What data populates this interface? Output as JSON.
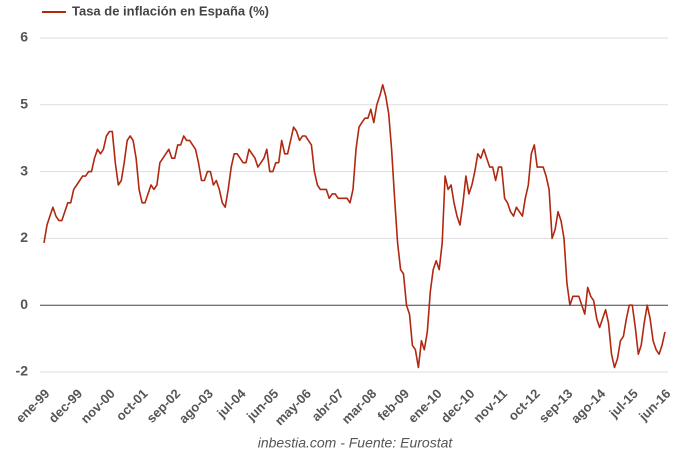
{
  "chart_data": {
    "type": "line",
    "title": null,
    "source": "inbestia.com - Fuente: Eurostat",
    "legend": "top-left",
    "grid": true,
    "categories": [
      "ene-99",
      null,
      null,
      null,
      null,
      null,
      null,
      null,
      null,
      null,
      null,
      "dec-99",
      null,
      null,
      null,
      null,
      null,
      null,
      null,
      null,
      null,
      null,
      "nov-00",
      null,
      null,
      null,
      null,
      null,
      null,
      null,
      null,
      null,
      null,
      "oct-01",
      null,
      null,
      null,
      null,
      null,
      null,
      null,
      null,
      null,
      null,
      "sep-02",
      null,
      null,
      null,
      null,
      null,
      null,
      null,
      null,
      null,
      null,
      "ago-03",
      null,
      null,
      null,
      null,
      null,
      null,
      null,
      null,
      null,
      null,
      "jul-04",
      null,
      null,
      null,
      null,
      null,
      null,
      null,
      null,
      null,
      null,
      "jun-05",
      null,
      null,
      null,
      null,
      null,
      null,
      null,
      null,
      null,
      null,
      "may-06",
      null,
      null,
      null,
      null,
      null,
      null,
      null,
      null,
      null,
      null,
      "abr-07",
      null,
      null,
      null,
      null,
      null,
      null,
      null,
      null,
      null,
      null,
      "mar-08",
      null,
      null,
      null,
      null,
      null,
      null,
      null,
      null,
      null,
      null,
      "feb-09",
      null,
      null,
      null,
      null,
      null,
      null,
      null,
      null,
      null,
      null,
      "ene-10",
      null,
      null,
      null,
      null,
      null,
      null,
      null,
      null,
      null,
      null,
      "dec-10",
      null,
      null,
      null,
      null,
      null,
      null,
      null,
      null,
      null,
      null,
      "nov-11",
      null,
      null,
      null,
      null,
      null,
      null,
      null,
      null,
      null,
      null,
      "oct-12",
      null,
      null,
      null,
      null,
      null,
      null,
      null,
      null,
      null,
      null,
      "sep-13",
      null,
      null,
      null,
      null,
      null,
      null,
      null,
      null,
      null,
      null,
      "ago-14",
      null,
      null,
      null,
      null,
      null,
      null,
      null,
      null,
      null,
      null,
      "jul-15",
      null,
      null,
      null,
      null,
      null,
      null,
      null,
      null,
      null,
      null,
      "jun-16"
    ],
    "series": [
      {
        "name": "Tasa de inflación en España (%)",
        "color": "#b0280f",
        "values": [
          1.4,
          1.8,
          2.0,
          2.2,
          2.0,
          1.9,
          1.9,
          2.1,
          2.3,
          2.3,
          2.6,
          2.7,
          2.8,
          2.9,
          2.9,
          3.0,
          3.0,
          3.3,
          3.5,
          3.4,
          3.5,
          3.8,
          3.9,
          3.9,
          3.2,
          2.7,
          2.8,
          3.2,
          3.7,
          3.8,
          3.7,
          3.3,
          2.6,
          2.3,
          2.3,
          2.5,
          2.7,
          2.6,
          2.7,
          3.2,
          3.3,
          3.4,
          3.5,
          3.3,
          3.3,
          3.6,
          3.6,
          3.8,
          3.7,
          3.7,
          3.6,
          3.5,
          3.2,
          2.8,
          2.8,
          3.0,
          3.0,
          2.7,
          2.8,
          2.6,
          2.3,
          2.2,
          2.6,
          3.1,
          3.4,
          3.4,
          3.3,
          3.2,
          3.2,
          3.5,
          3.4,
          3.3,
          3.1,
          3.2,
          3.3,
          3.5,
          3.0,
          3.0,
          3.2,
          3.2,
          3.7,
          3.4,
          3.4,
          3.7,
          4.0,
          3.9,
          3.7,
          3.8,
          3.8,
          3.7,
          3.6,
          3.0,
          2.7,
          2.6,
          2.6,
          2.6,
          2.4,
          2.5,
          2.5,
          2.4,
          2.4,
          2.4,
          2.4,
          2.3,
          2.6,
          3.5,
          4.0,
          4.1,
          4.2,
          4.2,
          4.4,
          4.1,
          4.5,
          4.7,
          4.95,
          4.7,
          4.3,
          3.5,
          2.4,
          1.4,
          0.8,
          0.7,
          0.0,
          -0.2,
          -0.9,
          -1.0,
          -1.4,
          -0.8,
          -1.0,
          -0.6,
          0.3,
          0.8,
          1.0,
          0.8,
          1.4,
          2.9,
          2.6,
          2.7,
          2.3,
          2.0,
          1.8,
          2.3,
          2.9,
          2.5,
          2.7,
          3.0,
          3.4,
          3.3,
          3.5,
          3.3,
          3.1,
          3.1,
          2.8,
          3.1,
          3.1,
          2.4,
          2.3,
          2.1,
          2.0,
          2.2,
          2.1,
          2.0,
          2.4,
          2.7,
          3.4,
          3.6,
          3.1,
          3.1,
          3.1,
          2.9,
          2.6,
          1.5,
          1.7,
          2.1,
          1.9,
          1.5,
          0.5,
          0.0,
          0.2,
          0.2,
          0.2,
          0.0,
          -0.2,
          0.4,
          0.2,
          0.1,
          -0.3,
          -0.5,
          -0.3,
          -0.1,
          -0.4,
          -1.1,
          -1.4,
          -1.2,
          -0.8,
          -0.7,
          -0.3,
          0.0,
          0.0,
          -0.5,
          -1.1,
          -0.9,
          -0.4,
          0.0,
          -0.3,
          -0.8,
          -1.0,
          -1.1,
          -0.9,
          -0.6
        ]
      }
    ],
    "ylim": [
      -1.5,
      6
    ],
    "yticks": [
      6,
      {
        "value": 4.5,
        "label": "5"
      },
      3,
      {
        "value": 1.5,
        "label": "2"
      },
      0,
      {
        "value": -1.5,
        "label": "-2"
      }
    ]
  }
}
